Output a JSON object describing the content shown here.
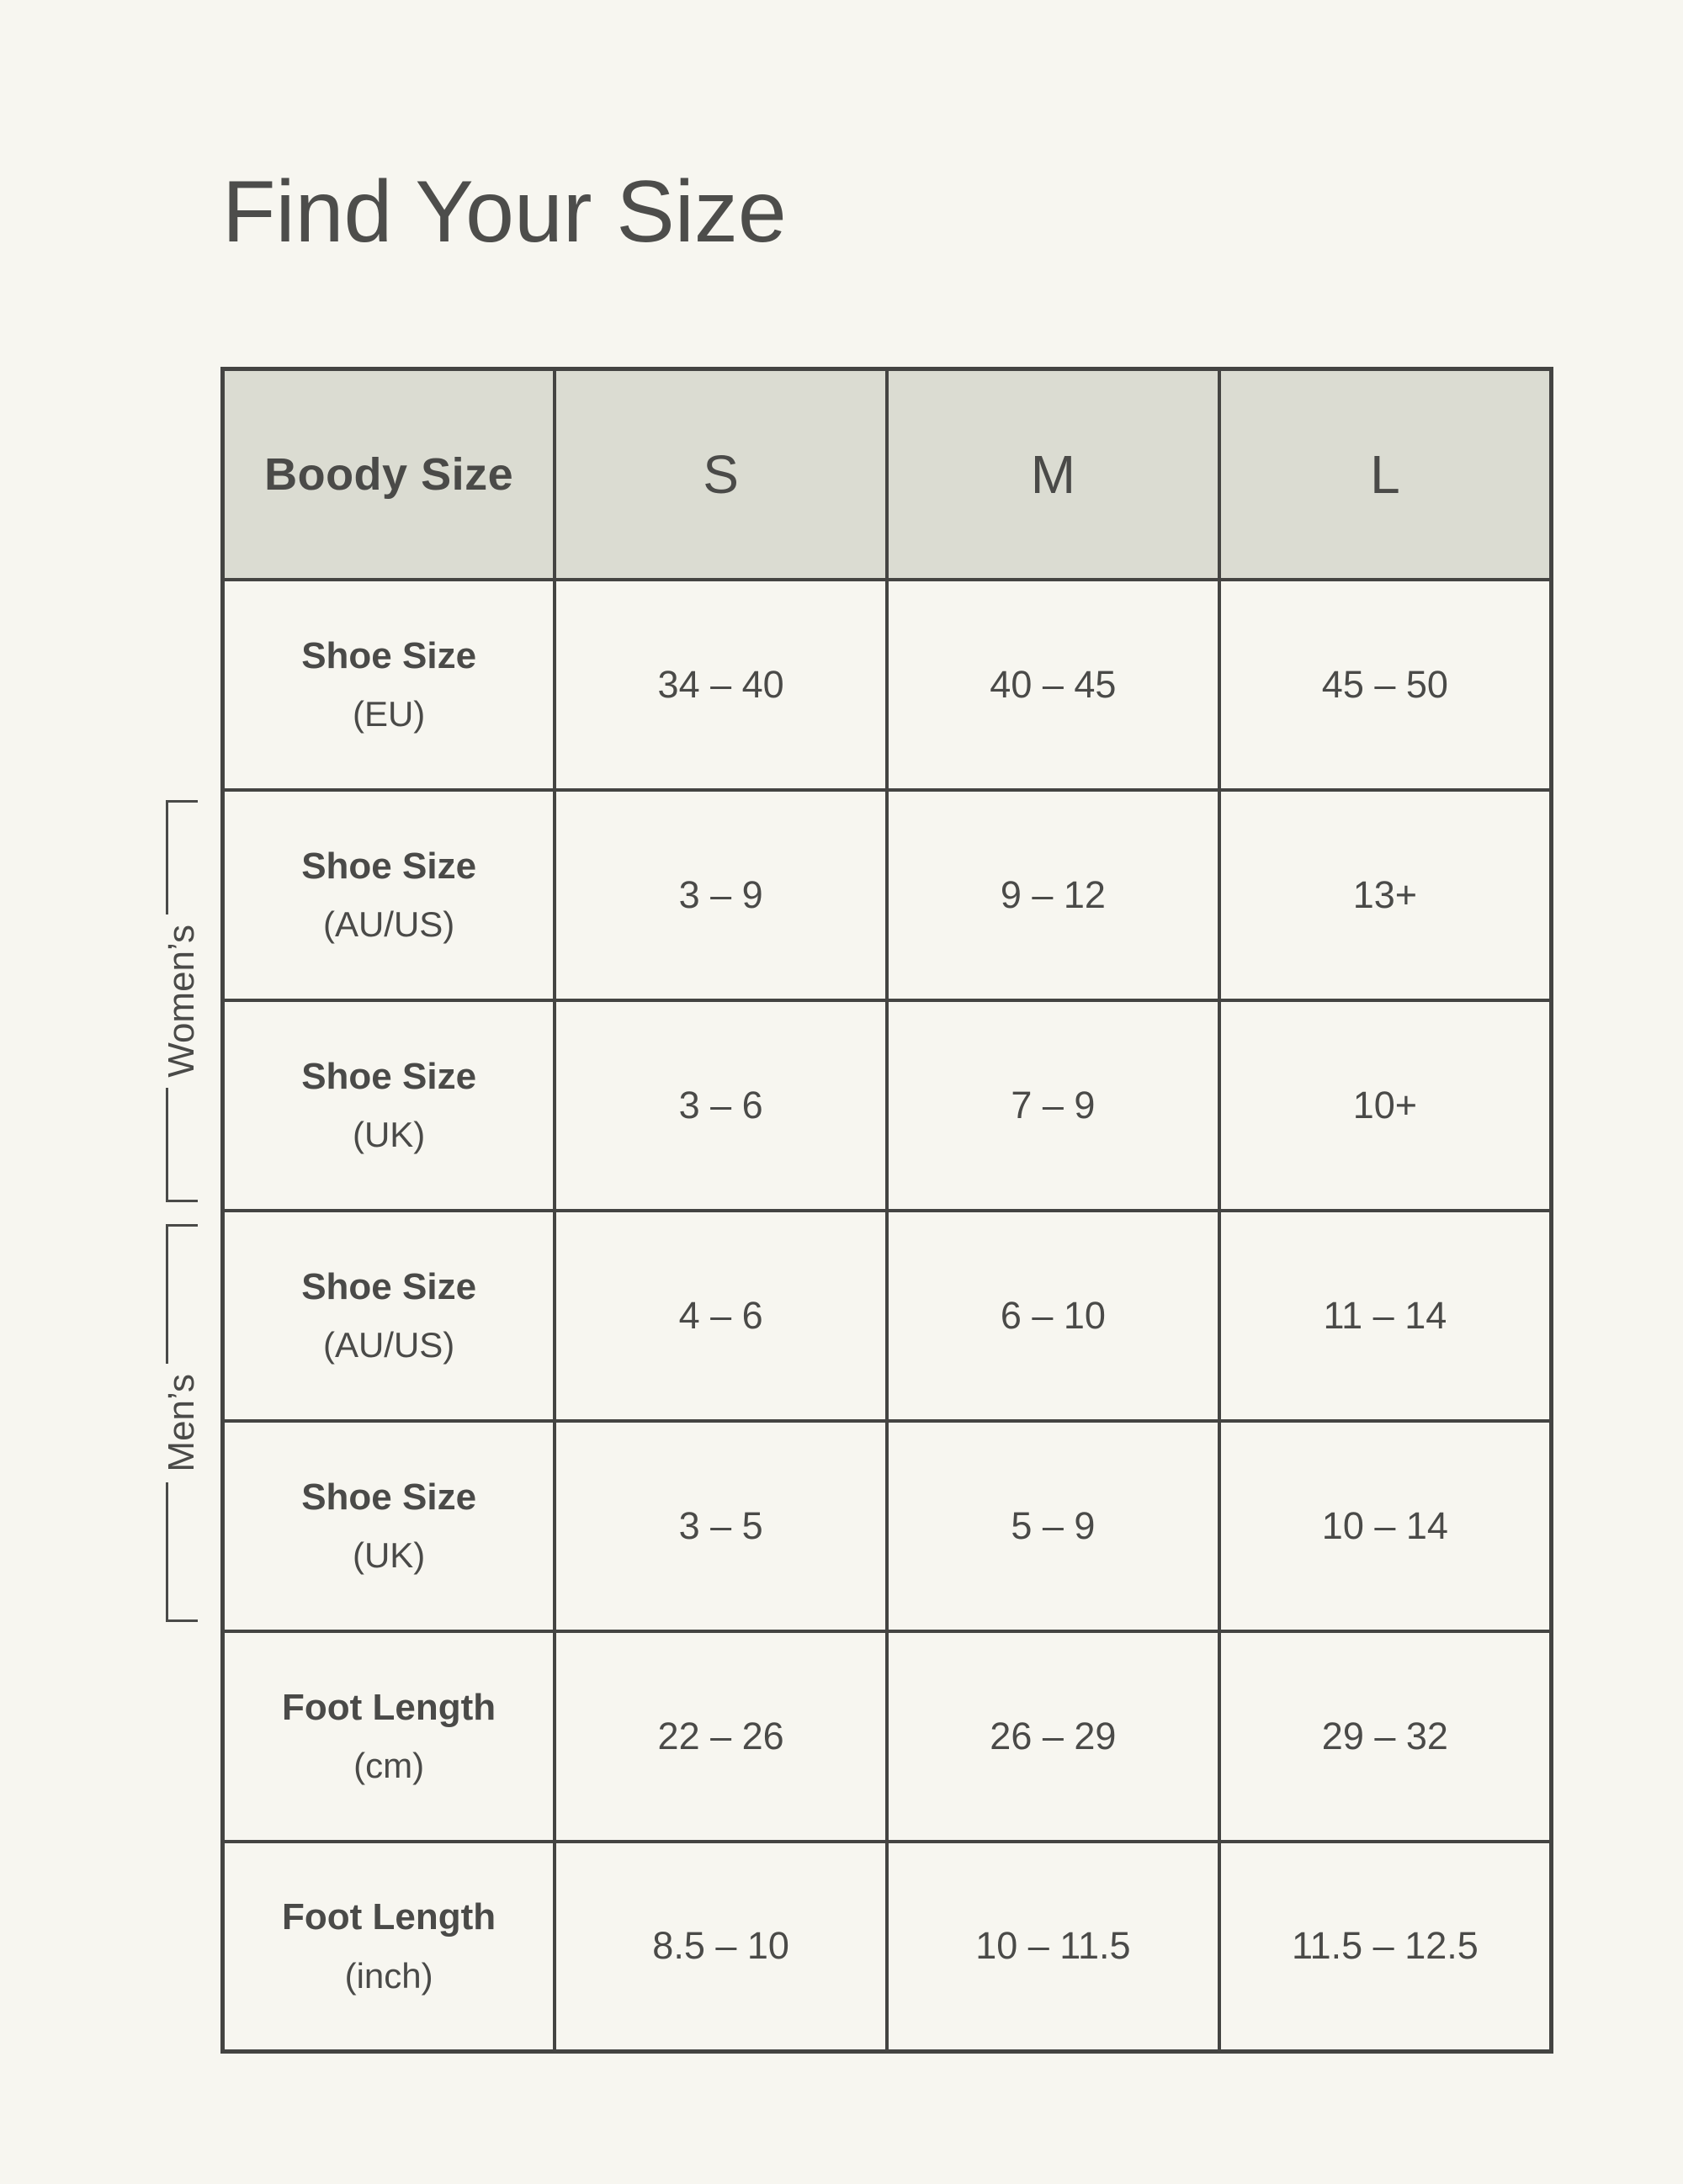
{
  "page": {
    "title": "Find Your Size"
  },
  "colors": {
    "background": "#f7f6f0",
    "header_cell_background": "#dbdcd2",
    "table_border": "#444442",
    "text": "#4a4a48"
  },
  "brackets": {
    "womens_label": "Women’s",
    "mens_label": "Men’s"
  },
  "table": {
    "header": {
      "label": "Boody Size",
      "sizes": [
        "S",
        "M",
        "L"
      ]
    },
    "rows": [
      {
        "label": "Shoe Size",
        "sub": "(EU)",
        "group": "",
        "values": [
          "34 – 40",
          "40 – 45",
          "45 – 50"
        ]
      },
      {
        "label": "Shoe Size",
        "sub": "(AU/US)",
        "group": "Women’s",
        "values": [
          "3 – 9",
          "9 – 12",
          "13+"
        ]
      },
      {
        "label": "Shoe Size",
        "sub": "(UK)",
        "group": "Women’s",
        "values": [
          "3 – 6",
          "7 – 9",
          "10+"
        ]
      },
      {
        "label": "Shoe Size",
        "sub": "(AU/US)",
        "group": "Men’s",
        "values": [
          "4 – 6",
          "6 – 10",
          "11 – 14"
        ]
      },
      {
        "label": "Shoe Size",
        "sub": "(UK)",
        "group": "Men’s",
        "values": [
          "3 – 5",
          "5 – 9",
          "10 – 14"
        ]
      },
      {
        "label": "Foot Length",
        "sub": "(cm)",
        "group": "",
        "values": [
          "22 – 26",
          "26 – 29",
          "29 – 32"
        ]
      },
      {
        "label": "Foot Length",
        "sub": "(inch)",
        "group": "",
        "values": [
          "8.5 – 10",
          "10 – 11.5",
          "11.5 – 12.5"
        ]
      }
    ]
  },
  "chart_data": {
    "type": "table",
    "title": "Find Your Size",
    "columns": [
      "Boody Size",
      "S",
      "M",
      "L"
    ],
    "rows": [
      [
        "Shoe Size (EU)",
        "34 – 40",
        "40 – 45",
        "45 – 50"
      ],
      [
        "Shoe Size (AU/US) — Women’s",
        "3 – 9",
        "9 – 12",
        "13+"
      ],
      [
        "Shoe Size (UK) — Women’s",
        "3 – 6",
        "7 – 9",
        "10+"
      ],
      [
        "Shoe Size (AU/US) — Men’s",
        "4 – 6",
        "6 – 10",
        "11 – 14"
      ],
      [
        "Shoe Size (UK) — Men’s",
        "3 – 5",
        "5 – 9",
        "10 – 14"
      ],
      [
        "Foot Length (cm)",
        "22 – 26",
        "26 – 29",
        "29 – 32"
      ],
      [
        "Foot Length (inch)",
        "8.5 – 10",
        "10 – 11.5",
        "11.5 – 12.5"
      ]
    ],
    "layout_hints": {
      "header_row_shaded": true,
      "row_groups": [
        {
          "label": "Women’s",
          "rows": [
            1,
            2
          ]
        },
        {
          "label": "Men’s",
          "rows": [
            3,
            4
          ]
        }
      ]
    }
  }
}
